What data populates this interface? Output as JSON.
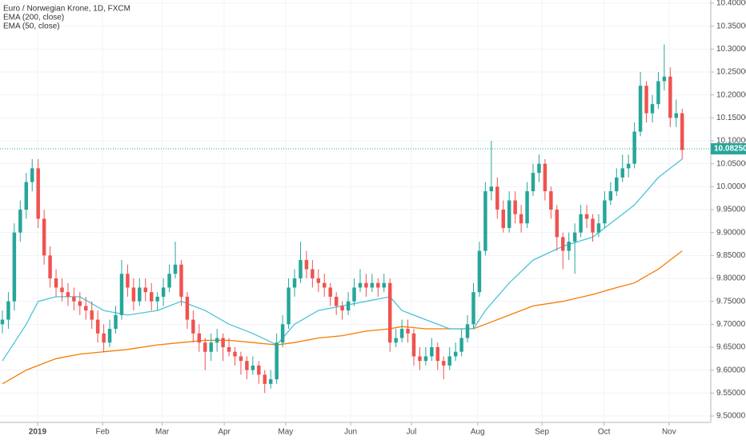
{
  "chart_data": {
    "type": "candlestick",
    "title": "Euro / Norwegian Krone, 1D, FXCM",
    "up_color": "#26a69a",
    "down_color": "#ef5350",
    "grid": true,
    "xlim": [
      -0.4,
      118.8
    ],
    "ylim": [
      9.486,
      10.407
    ],
    "xticks": [
      {
        "value": 5.9,
        "label": "2019"
      },
      {
        "value": 16.8,
        "label": "Feb"
      },
      {
        "value": 26.8,
        "label": "Mar"
      },
      {
        "value": 37.2,
        "label": "Apr"
      },
      {
        "value": 47.5,
        "label": "May"
      },
      {
        "value": 58.4,
        "label": "Jun"
      },
      {
        "value": 68.6,
        "label": "Jul"
      },
      {
        "value": 79.7,
        "label": "Aug"
      },
      {
        "value": 90.5,
        "label": "Sep"
      },
      {
        "value": 100.9,
        "label": "Oct"
      },
      {
        "value": 111.8,
        "label": "Nov"
      }
    ],
    "yticks": [
      {
        "value": 9.5,
        "label": "9.50000"
      },
      {
        "value": 9.55,
        "label": "9.55000"
      },
      {
        "value": 9.6,
        "label": "9.60000"
      },
      {
        "value": 9.65,
        "label": "9.65000"
      },
      {
        "value": 9.7,
        "label": "9.70000"
      },
      {
        "value": 9.75,
        "label": "9.75000"
      },
      {
        "value": 9.8,
        "label": "9.80000"
      },
      {
        "value": 9.85,
        "label": "9.85000"
      },
      {
        "value": 9.9,
        "label": "9.90000"
      },
      {
        "value": 9.95,
        "label": "9.95000"
      },
      {
        "value": 10,
        "label": "10.00000"
      },
      {
        "value": 10.05,
        "label": "10.05000"
      },
      {
        "value": 10.1,
        "label": "10.10000"
      },
      {
        "value": 10.15,
        "label": "10.15000"
      },
      {
        "value": 10.2,
        "label": "10.20000"
      },
      {
        "value": 10.25,
        "label": "10.25000"
      },
      {
        "value": 10.3,
        "label": "10.30000"
      },
      {
        "value": 10.35,
        "label": "10.35000"
      },
      {
        "value": 10.4,
        "label": "10.40000"
      }
    ],
    "last_price": {
      "value": 10.0825,
      "label": "10.08250",
      "color": "#26a69a"
    },
    "candles": [
      [
        9.7,
        9.73,
        9.68,
        9.71
      ],
      [
        9.71,
        9.77,
        9.69,
        9.75
      ],
      [
        9.75,
        9.92,
        9.73,
        9.9
      ],
      [
        9.9,
        9.97,
        9.88,
        9.95
      ],
      [
        9.95,
        10.03,
        9.93,
        10.01
      ],
      [
        10.01,
        10.06,
        9.99,
        10.04
      ],
      [
        10.04,
        10.06,
        9.91,
        9.93
      ],
      [
        9.93,
        9.95,
        9.83,
        9.85
      ],
      [
        9.85,
        9.87,
        9.78,
        9.8
      ],
      [
        9.8,
        9.82,
        9.76,
        9.78
      ],
      [
        9.78,
        9.8,
        9.75,
        9.77
      ],
      [
        9.77,
        9.79,
        9.74,
        9.76
      ],
      [
        9.76,
        9.78,
        9.73,
        9.75
      ],
      [
        9.75,
        9.77,
        9.72,
        9.74
      ],
      [
        9.74,
        9.76,
        9.71,
        9.73
      ],
      [
        9.73,
        9.75,
        9.69,
        9.71
      ],
      [
        9.71,
        9.73,
        9.66,
        9.68
      ],
      [
        9.68,
        9.7,
        9.64,
        9.66
      ],
      [
        9.66,
        9.71,
        9.65,
        9.69
      ],
      [
        9.69,
        9.74,
        9.68,
        9.72
      ],
      [
        9.72,
        9.84,
        9.71,
        9.81
      ],
      [
        9.81,
        9.83,
        9.76,
        9.78
      ],
      [
        9.78,
        9.8,
        9.73,
        9.75
      ],
      [
        9.75,
        9.8,
        9.74,
        9.78
      ],
      [
        9.78,
        9.8,
        9.75,
        9.77
      ],
      [
        9.77,
        9.79,
        9.73,
        9.75
      ],
      [
        9.75,
        9.77,
        9.73,
        9.76
      ],
      [
        9.76,
        9.8,
        9.74,
        9.78
      ],
      [
        9.78,
        9.83,
        9.77,
        9.81
      ],
      [
        9.81,
        9.88,
        9.8,
        9.83
      ],
      [
        9.83,
        9.84,
        9.74,
        9.76
      ],
      [
        9.76,
        9.77,
        9.69,
        9.71
      ],
      [
        9.71,
        9.73,
        9.66,
        9.68
      ],
      [
        9.68,
        9.7,
        9.64,
        9.66
      ],
      [
        9.66,
        9.67,
        9.6,
        9.64
      ],
      [
        9.64,
        9.68,
        9.62,
        9.66
      ],
      [
        9.66,
        9.69,
        9.64,
        9.67
      ],
      [
        9.67,
        9.68,
        9.62,
        9.65
      ],
      [
        9.65,
        9.67,
        9.63,
        9.64
      ],
      [
        9.64,
        9.65,
        9.61,
        9.63
      ],
      [
        9.63,
        9.64,
        9.59,
        9.62
      ],
      [
        9.62,
        9.63,
        9.58,
        9.6
      ],
      [
        9.6,
        9.63,
        9.59,
        9.61
      ],
      [
        9.61,
        9.62,
        9.57,
        9.59
      ],
      [
        9.59,
        9.6,
        9.55,
        9.57
      ],
      [
        9.57,
        9.6,
        9.56,
        9.58
      ],
      [
        9.58,
        9.68,
        9.57,
        9.66
      ],
      [
        9.66,
        9.72,
        9.65,
        9.7
      ],
      [
        9.7,
        9.8,
        9.69,
        9.78
      ],
      [
        9.78,
        9.82,
        9.76,
        9.8
      ],
      [
        9.8,
        9.88,
        9.79,
        9.84
      ],
      [
        9.84,
        9.86,
        9.8,
        9.82
      ],
      [
        9.82,
        9.84,
        9.78,
        9.8
      ],
      [
        9.8,
        9.82,
        9.77,
        9.79
      ],
      [
        9.79,
        9.81,
        9.76,
        9.78
      ],
      [
        9.78,
        9.79,
        9.74,
        9.76
      ],
      [
        9.76,
        9.77,
        9.72,
        9.74
      ],
      [
        9.74,
        9.75,
        9.71,
        9.73
      ],
      [
        9.73,
        9.77,
        9.72,
        9.75
      ],
      [
        9.75,
        9.8,
        9.74,
        9.78
      ],
      [
        9.78,
        9.82,
        9.77,
        9.79
      ],
      [
        9.79,
        9.81,
        9.76,
        9.78
      ],
      [
        9.78,
        9.81,
        9.77,
        9.79
      ],
      [
        9.79,
        9.8,
        9.76,
        9.78
      ],
      [
        9.78,
        9.81,
        9.77,
        9.79
      ],
      [
        9.79,
        9.8,
        9.64,
        9.66
      ],
      [
        9.66,
        9.69,
        9.65,
        9.67
      ],
      [
        9.67,
        9.71,
        9.66,
        9.69
      ],
      [
        9.69,
        9.71,
        9.66,
        9.68
      ],
      [
        9.68,
        9.69,
        9.61,
        9.63
      ],
      [
        9.63,
        9.65,
        9.6,
        9.62
      ],
      [
        9.62,
        9.65,
        9.61,
        9.63
      ],
      [
        9.63,
        9.67,
        9.62,
        9.65
      ],
      [
        9.65,
        9.66,
        9.6,
        9.62
      ],
      [
        9.62,
        9.63,
        9.58,
        9.61
      ],
      [
        9.61,
        9.65,
        9.6,
        9.63
      ],
      [
        9.63,
        9.66,
        9.62,
        9.64
      ],
      [
        9.64,
        9.69,
        9.63,
        9.67
      ],
      [
        9.67,
        9.72,
        9.66,
        9.7
      ],
      [
        9.7,
        9.79,
        9.69,
        9.77
      ],
      [
        9.77,
        9.88,
        9.76,
        9.86
      ],
      [
        9.86,
        10.01,
        9.85,
        9.99
      ],
      [
        9.99,
        10.1,
        9.97,
        10.0
      ],
      [
        10.0,
        10.02,
        9.93,
        9.95
      ],
      [
        9.95,
        9.97,
        9.9,
        9.91
      ],
      [
        9.91,
        9.99,
        9.9,
        9.97
      ],
      [
        9.97,
        9.99,
        9.92,
        9.94
      ],
      [
        9.94,
        9.96,
        9.9,
        9.92
      ],
      [
        9.92,
        10.01,
        9.91,
        9.99
      ],
      [
        9.99,
        10.05,
        9.98,
        10.03
      ],
      [
        10.03,
        10.07,
        10.01,
        10.05
      ],
      [
        10.05,
        10.06,
        9.97,
        9.99
      ],
      [
        9.99,
        10.0,
        9.93,
        9.95
      ],
      [
        9.95,
        9.96,
        9.86,
        9.89
      ],
      [
        9.89,
        9.9,
        9.82,
        9.86
      ],
      [
        9.86,
        9.9,
        9.84,
        9.88
      ],
      [
        9.88,
        9.92,
        9.81,
        9.9
      ],
      [
        9.9,
        9.96,
        9.89,
        9.94
      ],
      [
        9.94,
        9.96,
        9.91,
        9.93
      ],
      [
        9.93,
        9.94,
        9.88,
        9.9
      ],
      [
        9.9,
        9.94,
        9.89,
        9.92
      ],
      [
        9.92,
        9.99,
        9.91,
        9.97
      ],
      [
        9.97,
        10.01,
        9.96,
        9.99
      ],
      [
        9.99,
        10.04,
        9.98,
        10.02
      ],
      [
        10.02,
        10.07,
        10.01,
        10.04
      ],
      [
        10.04,
        10.07,
        10.02,
        10.05
      ],
      [
        10.05,
        10.14,
        10.04,
        10.12
      ],
      [
        10.12,
        10.25,
        10.11,
        10.22
      ],
      [
        10.22,
        10.23,
        10.14,
        10.16
      ],
      [
        10.16,
        10.2,
        10.14,
        10.18
      ],
      [
        10.18,
        10.25,
        10.17,
        10.23
      ],
      [
        10.23,
        10.31,
        10.21,
        10.24
      ],
      [
        10.24,
        10.26,
        10.13,
        10.15
      ],
      [
        10.15,
        10.19,
        10.13,
        10.16
      ],
      [
        10.16,
        10.17,
        10.06,
        10.08
      ]
    ],
    "series": [
      {
        "name": "EMA (200, close)",
        "color": "#f57c00",
        "x": [
          0,
          4,
          6,
          9,
          13,
          17,
          21,
          26,
          30,
          34,
          38,
          42,
          46,
          49,
          53,
          57,
          61,
          65,
          67,
          71,
          75,
          79,
          81,
          85,
          89,
          94,
          99,
          103,
          106,
          110,
          114
        ],
        "values": [
          9.57,
          9.6,
          9.61,
          9.625,
          9.635,
          9.64,
          9.645,
          9.655,
          9.66,
          9.665,
          9.665,
          9.66,
          9.655,
          9.66,
          9.67,
          9.675,
          9.685,
          9.69,
          9.695,
          9.69,
          9.69,
          9.69,
          9.7,
          9.72,
          9.74,
          9.75,
          9.765,
          9.78,
          9.79,
          9.82,
          9.86
        ]
      },
      {
        "name": "EMA (50, close)",
        "color": "#4dc3d8",
        "x": [
          0,
          4,
          6,
          9,
          13,
          17,
          21,
          26,
          30,
          34,
          38,
          42,
          46,
          49,
          53,
          57,
          61,
          65,
          67,
          71,
          75,
          79,
          81,
          85,
          89,
          94,
          99,
          103,
          106,
          110,
          114
        ],
        "values": [
          9.62,
          9.7,
          9.75,
          9.76,
          9.76,
          9.73,
          9.72,
          9.73,
          9.75,
          9.73,
          9.7,
          9.68,
          9.655,
          9.7,
          9.73,
          9.74,
          9.75,
          9.76,
          9.73,
          9.71,
          9.69,
          9.69,
          9.73,
          9.79,
          9.84,
          9.87,
          9.89,
          9.93,
          9.96,
          10.02,
          10.06
        ]
      }
    ]
  }
}
